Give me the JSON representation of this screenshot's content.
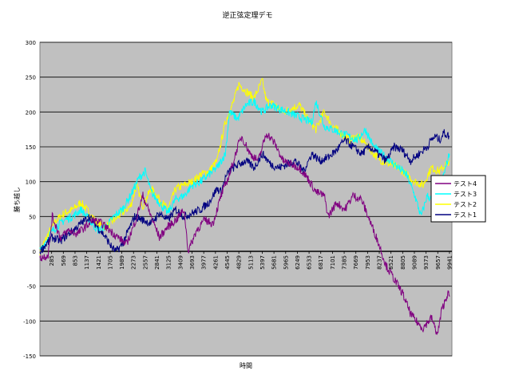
{
  "chart_data": {
    "type": "line",
    "title": "逆正弦定理デモ",
    "xlabel": "時間",
    "ylabel": "勝ち越し",
    "ylim": [
      -150,
      300
    ],
    "yticks": [
      "300",
      "250",
      "200",
      "150",
      "100",
      "50",
      "0",
      "-50",
      "-100",
      "-150"
    ],
    "xlim": [
      1,
      10000
    ],
    "xticks": [
      "285",
      "569",
      "853",
      "1137",
      "1421",
      "1705",
      "1989",
      "2273",
      "2557",
      "2841",
      "3125",
      "3409",
      "3693",
      "3977",
      "4261",
      "4545",
      "4829",
      "5113",
      "5397",
      "5681",
      "5965",
      "6249",
      "6533",
      "6817",
      "7101",
      "7385",
      "7669",
      "7953",
      "8237",
      "8521",
      "8805",
      "9089",
      "9373",
      "9657",
      "9941"
    ],
    "grid": true,
    "plot_background": "#c0c0c0",
    "legend_position": "right",
    "legend": [
      "テスト4",
      "テスト3",
      "テスト2",
      "テスト1"
    ],
    "series": [
      {
        "name": "テスト1",
        "color": "#000080",
        "x": [
          1,
          300,
          500,
          800,
          1000,
          1200,
          1400,
          1600,
          1750,
          1850,
          2000,
          2150,
          2300,
          2500,
          2700,
          2900,
          3100,
          3300,
          3500,
          3700,
          3900,
          4100,
          4300,
          4400,
          4500,
          4600,
          4700,
          4829,
          5000,
          5200,
          5400,
          5600,
          5800,
          6000,
          6200,
          6400,
          6600,
          6800,
          7000,
          7200,
          7400,
          7600,
          7800,
          8000,
          8200,
          8400,
          8600,
          8800,
          9000,
          9200,
          9400,
          9500,
          9600,
          9700,
          9800,
          9941
        ],
        "values": [
          0,
          20,
          15,
          30,
          40,
          50,
          35,
          20,
          5,
          0,
          10,
          30,
          50,
          45,
          40,
          55,
          45,
          60,
          50,
          55,
          60,
          70,
          90,
          85,
          105,
          115,
          120,
          125,
          130,
          120,
          140,
          125,
          120,
          125,
          130,
          115,
          140,
          130,
          135,
          145,
          160,
          150,
          140,
          150,
          140,
          130,
          150,
          145,
          130,
          140,
          150,
          160,
          165,
          160,
          170,
          165
        ]
      },
      {
        "name": "テスト2",
        "color": "#ffff00",
        "x": [
          1,
          250,
          400,
          600,
          800,
          1000,
          1200,
          1400,
          1600,
          1800,
          2000,
          2200,
          2350,
          2500,
          2700,
          2900,
          3100,
          3300,
          3500,
          3700,
          3900,
          4100,
          4300,
          4500,
          4700,
          4829,
          5000,
          5200,
          5397,
          5500,
          5700,
          5900,
          6100,
          6300,
          6500,
          6700,
          6900,
          7100,
          7300,
          7500,
          7700,
          7900,
          8100,
          8300,
          8500,
          8700,
          8900,
          9100,
          9300,
          9500,
          9700,
          9941
        ],
        "values": [
          0,
          30,
          45,
          55,
          60,
          70,
          55,
          40,
          35,
          45,
          55,
          65,
          95,
          65,
          90,
          75,
          60,
          90,
          95,
          100,
          110,
          115,
          130,
          185,
          215,
          240,
          230,
          220,
          245,
          215,
          210,
          200,
          205,
          210,
          190,
          175,
          200,
          180,
          170,
          160,
          165,
          155,
          140,
          130,
          125,
          120,
          110,
          100,
          95,
          120,
          115,
          130
        ]
      },
      {
        "name": "テスト3",
        "color": "#00ffff",
        "x": [
          1,
          250,
          400,
          600,
          800,
          1000,
          1200,
          1400,
          1600,
          1800,
          2000,
          2200,
          2400,
          2557,
          2700,
          2900,
          3100,
          3300,
          3500,
          3700,
          3900,
          4100,
          4300,
          4500,
          4600,
          4800,
          5000,
          5200,
          5400,
          5600,
          5800,
          6000,
          6200,
          6400,
          6600,
          6700,
          6900,
          7100,
          7300,
          7500,
          7700,
          7900,
          8100,
          8300,
          8500,
          8700,
          8900,
          9100,
          9250,
          9400,
          9600,
          9800,
          9941
        ],
        "values": [
          0,
          25,
          35,
          45,
          50,
          60,
          45,
          30,
          35,
          50,
          60,
          80,
          105,
          115,
          85,
          70,
          55,
          75,
          80,
          95,
          100,
          110,
          120,
          140,
          200,
          190,
          210,
          215,
          200,
          210,
          205,
          200,
          195,
          190,
          185,
          215,
          180,
          175,
          170,
          165,
          160,
          175,
          150,
          140,
          130,
          120,
          110,
          80,
          50,
          80,
          70,
          110,
          140
        ]
      },
      {
        "name": "テスト4",
        "color": "#800080",
        "x": [
          1,
          200,
          300,
          500,
          700,
          900,
          1100,
          1300,
          1500,
          1700,
          1900,
          2100,
          2300,
          2500,
          2700,
          2900,
          3100,
          3300,
          3500,
          3600,
          3800,
          4000,
          4200,
          4400,
          4600,
          4800,
          4900,
          5100,
          5300,
          5500,
          5700,
          5900,
          6100,
          6300,
          6500,
          6700,
          6900,
          7000,
          7200,
          7400,
          7600,
          7800,
          8000,
          8200,
          8400,
          8600,
          8800,
          9000,
          9200,
          9300,
          9500,
          9650,
          9750,
          9900,
          9941
        ],
        "values": [
          -10,
          -5,
          50,
          20,
          30,
          25,
          35,
          45,
          40,
          30,
          20,
          10,
          40,
          80,
          50,
          20,
          35,
          45,
          60,
          0,
          30,
          45,
          40,
          80,
          110,
          150,
          165,
          140,
          130,
          170,
          155,
          130,
          125,
          120,
          105,
          85,
          80,
          50,
          70,
          60,
          80,
          75,
          45,
          15,
          -20,
          -40,
          -60,
          -90,
          -105,
          -110,
          -95,
          -120,
          -85,
          -60,
          -65
        ]
      }
    ]
  }
}
